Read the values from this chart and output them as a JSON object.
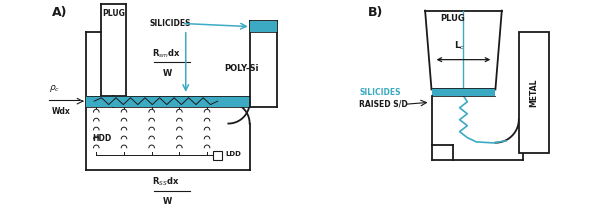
{
  "bg_color": "#ffffff",
  "line_color": "#1a1a1a",
  "silicide_color": "#3daac4",
  "teal_color": "#3daac4",
  "label_A": "A)",
  "label_B": "B)",
  "plug_label_A": "PLUG",
  "poly_label": "POLY-Si",
  "silicides_label_A": "SILICIDES",
  "rsm_label": "R$_{sm}$dx",
  "rsm_denom": "W",
  "rss_label": "R$_{SS}$dx",
  "rss_denom": "W",
  "hdd_label": "HDD",
  "ldd_label": "LDD",
  "rho_label": "$\\rho_c$",
  "wdx_label": "Wdx",
  "plug_label_B": "PLUG",
  "silicides_label_B": "SILICIDES",
  "raised_sd_label": "RAISED S/D",
  "metal_label": "METAL",
  "lc_label": "L$_c$"
}
